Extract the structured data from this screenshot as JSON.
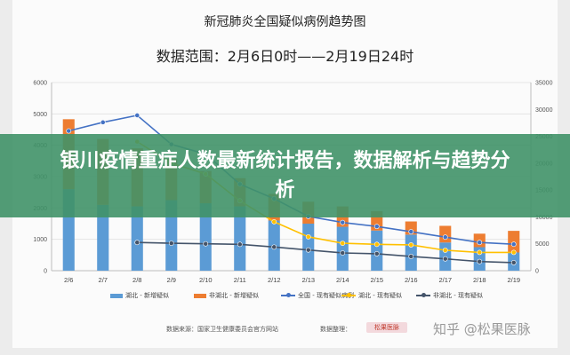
{
  "header": {
    "title": "新冠肺炎全国疑似病例趋势图",
    "range": "数据范围：2月6日0时——2月19日24时"
  },
  "banner": {
    "text": "银川疫情重症人数最新统计报告，数据解析与趋势分析"
  },
  "footer": {
    "source": "数据来源：国家卫生健康委员会官方网站",
    "organizer": "数据整理：",
    "logo_text": "松果医脉",
    "watermark": "知乎 @松果医脉"
  },
  "colors": {
    "hubei_new": "#5b9bd5",
    "non_hubei_new": "#ed7d31",
    "existing_suspected": "#4472c4",
    "hubei_existing": "#ffc000",
    "non_hubei_existing": "#44546a"
  },
  "chart_data": {
    "type": "bar",
    "categories": [
      "2/6",
      "2/7",
      "2/8",
      "2/9",
      "2/10",
      "2/11",
      "2/12",
      "2/13",
      "2/14",
      "2/15",
      "2/16",
      "2/17",
      "2/18",
      "2/19"
    ],
    "y_left": {
      "ylim": [
        0,
        6000
      ],
      "ticks": [
        "0",
        "1000",
        "2000",
        "3000",
        "4000",
        "5000",
        "6000"
      ]
    },
    "y_right": {
      "ylim": [
        0,
        35000
      ],
      "ticks": [
        "0",
        "5000",
        "10000",
        "15000",
        "20000",
        "25000",
        "30000",
        "35000"
      ]
    },
    "series": [
      {
        "name": "湖北 - 新增疑似",
        "type": "bar",
        "axis": "left",
        "stack": "new",
        "color": "#5b9bd5",
        "values": [
          2600,
          2100,
          2050,
          2250,
          2150,
          2050,
          1600,
          1500,
          1400,
          1280,
          1150,
          900,
          750,
          580
        ]
      },
      {
        "name": "非湖北 - 新增疑似",
        "type": "bar",
        "axis": "left",
        "stack": "new",
        "color": "#ed7d31",
        "values": [
          2230,
          2100,
          1850,
          1320,
          1030,
          900,
          850,
          700,
          650,
          620,
          420,
          530,
          430,
          690
        ]
      },
      {
        "name": "全国 - 现有疑似病例",
        "type": "line",
        "axis": "right",
        "color": "#4472c4",
        "values": [
          26000,
          27600,
          28900,
          23500,
          21700,
          16100,
          13400,
          10100,
          8970,
          8230,
          7260,
          6240,
          5250,
          4920
        ]
      },
      {
        "name": "湖北 - 现有疑似",
        "type": "line",
        "axis": "right",
        "color": "#ffc000",
        "values": [
          null,
          null,
          24000,
          20000,
          18000,
          13000,
          9100,
          6300,
          5100,
          4900,
          4800,
          3800,
          3400,
          3400
        ]
      },
      {
        "name": "非湖北 - 现有疑似",
        "type": "line",
        "axis": "right",
        "color": "#44546a",
        "values": [
          null,
          null,
          5250,
          5100,
          5000,
          4900,
          4400,
          3850,
          3300,
          3150,
          2650,
          2200,
          1700,
          1500
        ]
      }
    ]
  }
}
